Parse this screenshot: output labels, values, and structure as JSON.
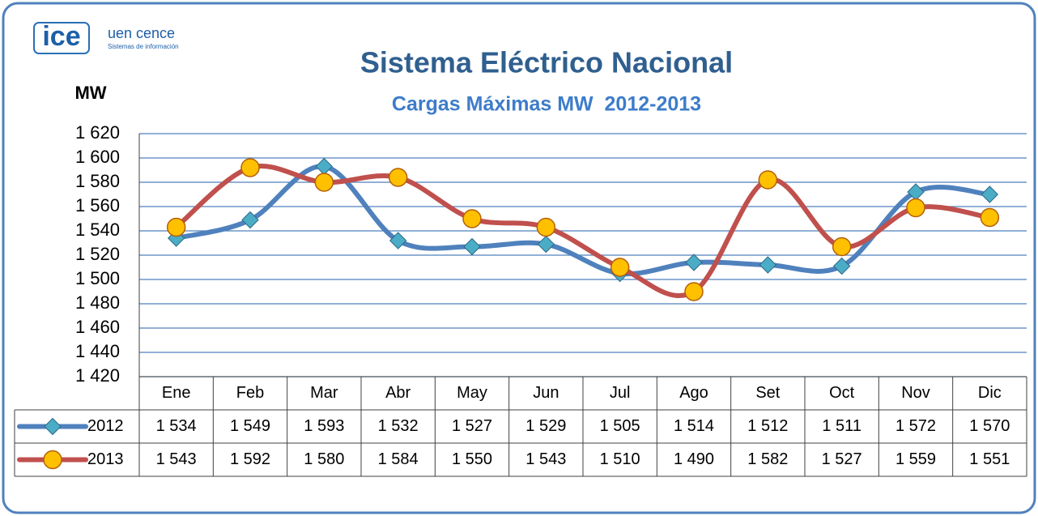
{
  "logo": {
    "brand": "ice",
    "unit": "uen cence",
    "tagline": "Sistemas de información"
  },
  "chart_data": {
    "type": "line",
    "title": "Sistema Eléctrico Nacional",
    "subtitle": "Cargas Máximas MW  2012-2013",
    "y_label": "MW",
    "categories": [
      "Ene",
      "Feb",
      "Mar",
      "Abr",
      "May",
      "Jun",
      "Jul",
      "Ago",
      "Set",
      "Oct",
      "Nov",
      "Dic"
    ],
    "series": [
      {
        "name": "2012",
        "color": "#4f81bd",
        "marker_color": "#4bacc6",
        "marker": "diamond",
        "values": [
          1534,
          1549,
          1593,
          1532,
          1527,
          1529,
          1505,
          1514,
          1512,
          1511,
          1572,
          1570
        ],
        "value_labels": [
          "1 534",
          "1 549",
          "1 593",
          "1 532",
          "1 527",
          "1 529",
          "1 505",
          "1 514",
          "1 512",
          "1 511",
          "1 572",
          "1 570"
        ]
      },
      {
        "name": "2013",
        "color": "#c0504d",
        "marker_color": "#ffc000",
        "marker": "circle",
        "values": [
          1543,
          1592,
          1580,
          1584,
          1550,
          1543,
          1510,
          1490,
          1582,
          1527,
          1559,
          1551
        ],
        "value_labels": [
          "1 543",
          "1 592",
          "1 580",
          "1 584",
          "1 550",
          "1 543",
          "1 510",
          "1 490",
          "1 582",
          "1 527",
          "1 559",
          "1 551"
        ]
      }
    ],
    "ylim": [
      1420,
      1620
    ],
    "yticks": [
      {
        "value": 1420,
        "label": "1 420"
      },
      {
        "value": 1440,
        "label": "1 440"
      },
      {
        "value": 1460,
        "label": "1 460"
      },
      {
        "value": 1480,
        "label": "1 480"
      },
      {
        "value": 1500,
        "label": "1 500"
      },
      {
        "value": 1520,
        "label": "1 520"
      },
      {
        "value": 1540,
        "label": "1 540"
      },
      {
        "value": 1560,
        "label": "1 560"
      },
      {
        "value": 1580,
        "label": "1 580"
      },
      {
        "value": 1600,
        "label": "1 600"
      },
      {
        "value": 1620,
        "label": "1 620"
      }
    ],
    "grid": true,
    "smooth": true
  }
}
